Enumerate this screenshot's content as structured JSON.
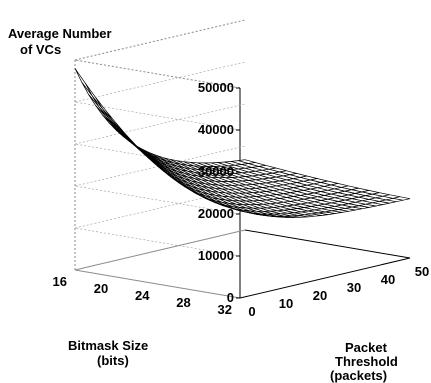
{
  "chart_data": {
    "type": "surface",
    "title": "",
    "zlabel": [
      "Average Number",
      "of VCs"
    ],
    "ylabel": [
      "Bitmask Size",
      "(bits)"
    ],
    "xlabel": [
      "Packet",
      "Threshold",
      "(packets)"
    ],
    "x_axis": {
      "name": "Packet Threshold (packets)",
      "range": [
        0,
        50
      ],
      "ticks": [
        0,
        10,
        20,
        30,
        40,
        50
      ]
    },
    "y_axis": {
      "name": "Bitmask Size (bits)",
      "range": [
        16,
        32
      ],
      "ticks": [
        32,
        28,
        24,
        20,
        16
      ]
    },
    "z_axis": {
      "name": "Average Number of VCs",
      "range": [
        0,
        50000
      ],
      "ticks": [
        0,
        10000,
        20000,
        30000,
        40000,
        50000
      ]
    },
    "grid": true,
    "surface_samples": [
      {
        "x": 0,
        "y": 16,
        "z": 48000
      },
      {
        "x": 0,
        "y": 24,
        "z": 30000
      },
      {
        "x": 0,
        "y": 32,
        "z": 22000
      },
      {
        "x": 25,
        "y": 16,
        "z": 19000
      },
      {
        "x": 25,
        "y": 32,
        "z": 14000
      },
      {
        "x": 50,
        "y": 16,
        "z": 12000
      },
      {
        "x": 50,
        "y": 32,
        "z": 14000
      }
    ]
  }
}
